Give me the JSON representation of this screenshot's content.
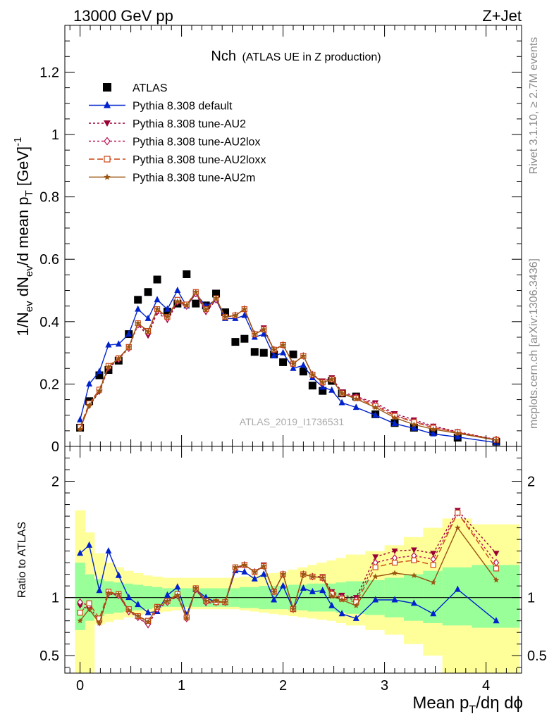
{
  "header": {
    "left": "13000 GeV pp",
    "right": "Z+Jet"
  },
  "side_labels": {
    "rivet": "Rivet 3.1.10, ≥ 2.7M events",
    "mcplots": "mcplots.cern.ch [arXiv:1306.3436]"
  },
  "plot": {
    "title_main": "Nch",
    "title_sub": "(ATLAS UE in Z production)",
    "watermark": "ATLAS_2019_I1736531",
    "ylabel_main": "1/N_ev dN_ev/d mean p_T [GeV]^-1",
    "ylabel_ratio": "Ratio to ATLAS",
    "xlabel": "Mean p_T/dη dϕ"
  },
  "colors": {
    "atlas": "#000000",
    "default": "#0022cc",
    "au2": "#990033",
    "au2lox": "#bb1155",
    "au2loxx": "#cc4411",
    "au2m": "#995511",
    "band_yellow": "#ffff99",
    "band_green": "#99ff99"
  },
  "chart_data": [
    {
      "type": "scatter",
      "name": "main",
      "xlim": [
        -0.15,
        4.35
      ],
      "ylim": [
        0,
        1.35
      ],
      "x_ticks": [
        0,
        1,
        2,
        3,
        4
      ],
      "y_ticks": [
        0,
        0.2,
        0.4,
        0.6,
        0.8,
        1,
        1.2
      ],
      "x_tick_labels": [
        "0",
        "1",
        "2",
        "3",
        "4"
      ],
      "y_tick_labels": [
        "0",
        "0.2",
        "0.4",
        "0.6",
        "0.8",
        "1",
        "1.2"
      ],
      "legend_position": "top-left",
      "x": [
        0.0,
        0.09,
        0.19,
        0.28,
        0.38,
        0.48,
        0.57,
        0.67,
        0.76,
        0.86,
        0.96,
        1.05,
        1.14,
        1.24,
        1.34,
        1.43,
        1.53,
        1.62,
        1.72,
        1.81,
        1.91,
        2.0,
        2.1,
        2.2,
        2.29,
        2.39,
        2.48,
        2.58,
        2.72,
        2.91,
        3.1,
        3.29,
        3.48,
        3.72,
        4.1
      ],
      "series": [
        {
          "name": "ATLAS",
          "key": "atlas",
          "marker": "square",
          "line": "none",
          "values": [
            0.06,
            0.145,
            0.228,
            0.245,
            0.275,
            0.36,
            0.47,
            0.495,
            0.535,
            0.432,
            0.458,
            0.552,
            0.458,
            0.452,
            0.49,
            0.43,
            0.335,
            0.345,
            0.303,
            0.3,
            0.295,
            0.27,
            0.295,
            0.24,
            0.195,
            0.178,
            0.21,
            0.17,
            0.16,
            0.103,
            0.075,
            0.06,
            0.047,
            0.028,
            0.015
          ]
        },
        {
          "name": "Pythia 8.308 default",
          "key": "default",
          "marker": "triangle",
          "line": "solid",
          "values": [
            0.085,
            0.2,
            0.24,
            0.325,
            0.328,
            0.36,
            0.44,
            0.41,
            0.47,
            0.44,
            0.5,
            0.45,
            0.49,
            0.45,
            0.47,
            0.41,
            0.41,
            0.42,
            0.35,
            0.36,
            0.29,
            0.3,
            0.25,
            0.26,
            0.22,
            0.19,
            0.18,
            0.14,
            0.125,
            0.1,
            0.073,
            0.058,
            0.04,
            0.03,
            0.012
          ]
        },
        {
          "name": "Pythia 8.308 tune-AU2",
          "key": "au2",
          "marker": "triangle-down",
          "line": "dotted",
          "values": [
            0.058,
            0.13,
            0.175,
            0.25,
            0.28,
            0.32,
            0.39,
            0.355,
            0.43,
            0.405,
            0.46,
            0.45,
            0.49,
            0.43,
            0.47,
            0.415,
            0.42,
            0.44,
            0.36,
            0.38,
            0.31,
            0.325,
            0.265,
            0.29,
            0.23,
            0.21,
            0.22,
            0.175,
            0.16,
            0.14,
            0.105,
            0.085,
            0.065,
            0.047,
            0.022
          ]
        },
        {
          "name": "Pythia 8.308 tune-AU2lox",
          "key": "au2lox",
          "marker": "diamond",
          "line": "dotted",
          "values": [
            0.06,
            0.135,
            0.18,
            0.255,
            0.28,
            0.315,
            0.39,
            0.365,
            0.435,
            0.41,
            0.465,
            0.45,
            0.49,
            0.435,
            0.47,
            0.415,
            0.42,
            0.44,
            0.36,
            0.375,
            0.31,
            0.325,
            0.265,
            0.29,
            0.23,
            0.205,
            0.215,
            0.17,
            0.158,
            0.135,
            0.1,
            0.08,
            0.062,
            0.045,
            0.022
          ]
        },
        {
          "name": "Pythia 8.308 tune-AU2loxx",
          "key": "au2loxx",
          "marker": "open-square",
          "line": "dashed",
          "values": [
            0.062,
            0.138,
            0.182,
            0.258,
            0.283,
            0.318,
            0.395,
            0.37,
            0.44,
            0.415,
            0.47,
            0.455,
            0.495,
            0.44,
            0.475,
            0.415,
            0.42,
            0.44,
            0.36,
            0.375,
            0.31,
            0.325,
            0.265,
            0.29,
            0.23,
            0.205,
            0.215,
            0.17,
            0.155,
            0.13,
            0.098,
            0.078,
            0.06,
            0.045,
            0.021
          ]
        },
        {
          "name": "Pythia 8.308 tune-AU2m",
          "key": "au2m",
          "marker": "star",
          "line": "solid",
          "values": [
            0.055,
            0.132,
            0.178,
            0.255,
            0.282,
            0.318,
            0.395,
            0.368,
            0.44,
            0.415,
            0.465,
            0.452,
            0.495,
            0.438,
            0.475,
            0.415,
            0.42,
            0.44,
            0.36,
            0.375,
            0.31,
            0.325,
            0.265,
            0.29,
            0.23,
            0.205,
            0.215,
            0.17,
            0.152,
            0.125,
            0.092,
            0.07,
            0.055,
            0.042,
            0.02
          ]
        }
      ]
    },
    {
      "type": "line",
      "name": "ratio",
      "xlim": [
        -0.15,
        4.35
      ],
      "ylim": [
        0.35,
        2.3
      ],
      "y_ticks": [
        0.5,
        1,
        2
      ],
      "y_tick_labels": [
        "0.5",
        "1",
        "2"
      ],
      "x": [
        0.0,
        0.09,
        0.19,
        0.28,
        0.38,
        0.48,
        0.57,
        0.67,
        0.76,
        0.86,
        0.96,
        1.05,
        1.14,
        1.24,
        1.34,
        1.43,
        1.53,
        1.62,
        1.72,
        1.81,
        1.91,
        2.0,
        2.1,
        2.2,
        2.29,
        2.39,
        2.48,
        2.58,
        2.72,
        2.91,
        3.1,
        3.29,
        3.48,
        3.72,
        4.1
      ],
      "bands": {
        "edges": [
          -0.05,
          0.05,
          0.14,
          0.24,
          0.33,
          0.43,
          0.52,
          0.62,
          0.71,
          0.81,
          0.9,
          1.0,
          1.1,
          1.19,
          1.29,
          1.38,
          1.48,
          1.57,
          1.67,
          1.76,
          1.86,
          1.95,
          2.05,
          2.14,
          2.24,
          2.33,
          2.43,
          2.52,
          2.62,
          2.81,
          3.0,
          3.19,
          3.38,
          3.57,
          3.86,
          4.33
        ],
        "yellow_low": [
          0.35,
          0.35,
          0.77,
          0.79,
          0.81,
          0.83,
          0.85,
          0.86,
          0.87,
          0.88,
          0.89,
          0.9,
          0.9,
          0.9,
          0.9,
          0.9,
          0.9,
          0.89,
          0.88,
          0.87,
          0.86,
          0.85,
          0.84,
          0.83,
          0.82,
          0.81,
          0.8,
          0.78,
          0.76,
          0.72,
          0.68,
          0.6,
          0.5,
          0.35,
          0.35
        ],
        "yellow_high": [
          1.75,
          1.56,
          1.38,
          1.3,
          1.26,
          1.23,
          1.21,
          1.19,
          1.18,
          1.17,
          1.17,
          1.17,
          1.17,
          1.17,
          1.17,
          1.17,
          1.17,
          1.18,
          1.19,
          1.2,
          1.21,
          1.22,
          1.24,
          1.26,
          1.28,
          1.3,
          1.32,
          1.34,
          1.37,
          1.4,
          1.45,
          1.52,
          1.6,
          1.68,
          1.63
        ],
        "green_low": [
          0.72,
          0.8,
          0.84,
          0.86,
          0.87,
          0.88,
          0.89,
          0.9,
          0.91,
          0.92,
          0.92,
          0.92,
          0.92,
          0.92,
          0.92,
          0.92,
          0.92,
          0.91,
          0.91,
          0.9,
          0.9,
          0.9,
          0.89,
          0.89,
          0.88,
          0.88,
          0.88,
          0.87,
          0.86,
          0.85,
          0.83,
          0.8,
          0.78,
          0.76,
          0.74
        ],
        "green_high": [
          1.3,
          1.2,
          1.16,
          1.14,
          1.13,
          1.12,
          1.11,
          1.1,
          1.09,
          1.08,
          1.08,
          1.08,
          1.08,
          1.08,
          1.08,
          1.08,
          1.08,
          1.09,
          1.09,
          1.1,
          1.1,
          1.1,
          1.11,
          1.11,
          1.12,
          1.12,
          1.12,
          1.13,
          1.14,
          1.15,
          1.17,
          1.2,
          1.23,
          1.26,
          1.28
        ]
      },
      "series": [
        {
          "name": "Pythia 8.308 default",
          "key": "default",
          "marker": "triangle",
          "line": "solid",
          "values": [
            1.38,
            1.45,
            1.06,
            1.4,
            1.19,
            1.0,
            0.94,
            0.87,
            0.88,
            1.02,
            1.09,
            0.85,
            1.07,
            1.0,
            0.96,
            0.96,
            1.23,
            1.22,
            1.16,
            1.2,
            0.98,
            1.1,
            0.9,
            1.08,
            1.05,
            1.06,
            0.93,
            0.86,
            0.82,
            0.98,
            0.98,
            0.95,
            0.86,
            1.07,
            0.8
          ]
        },
        {
          "name": "Pythia 8.308 tune-AU2",
          "key": "au2",
          "marker": "triangle-down",
          "line": "dotted",
          "values": [
            0.93,
            0.9,
            0.78,
            1.03,
            1.02,
            0.89,
            0.83,
            0.76,
            0.9,
            0.96,
            1.01,
            0.82,
            1.07,
            0.95,
            0.96,
            0.96,
            1.24,
            1.28,
            1.22,
            1.28,
            1.05,
            1.2,
            0.9,
            1.2,
            1.18,
            1.18,
            1.05,
            1.02,
            1.0,
            1.35,
            1.4,
            1.41,
            1.38,
            1.75,
            1.38
          ]
        },
        {
          "name": "Pythia 8.308 tune-AU2lox",
          "key": "au2lox",
          "marker": "diamond",
          "line": "dotted",
          "values": [
            0.96,
            0.93,
            0.79,
            1.04,
            1.02,
            0.88,
            0.83,
            0.77,
            0.9,
            0.96,
            1.02,
            0.82,
            1.07,
            0.96,
            0.96,
            0.96,
            1.25,
            1.28,
            1.22,
            1.27,
            1.05,
            1.2,
            0.9,
            1.2,
            1.18,
            1.17,
            1.04,
            1.0,
            0.98,
            1.3,
            1.34,
            1.36,
            1.33,
            1.73,
            1.3
          ]
        },
        {
          "name": "Pythia 8.308 tune-AU2loxx",
          "key": "au2loxx",
          "marker": "open-square",
          "line": "dashed",
          "values": [
            0.87,
            0.95,
            0.82,
            1.05,
            1.03,
            0.9,
            0.84,
            0.8,
            0.92,
            0.97,
            1.03,
            0.83,
            1.08,
            0.97,
            0.96,
            0.96,
            1.26,
            1.28,
            1.22,
            1.27,
            1.05,
            1.2,
            0.9,
            1.2,
            1.18,
            1.17,
            1.03,
            0.99,
            0.96,
            1.26,
            1.3,
            1.32,
            1.28,
            1.73,
            1.25
          ]
        },
        {
          "name": "Pythia 8.308 tune-AU2m",
          "key": "au2m",
          "marker": "star",
          "line": "solid",
          "values": [
            0.8,
            0.9,
            0.78,
            1.04,
            1.03,
            0.89,
            0.84,
            0.79,
            0.92,
            0.97,
            1.02,
            0.82,
            1.08,
            0.97,
            0.97,
            0.96,
            1.26,
            1.28,
            1.22,
            1.27,
            1.05,
            1.2,
            0.9,
            1.2,
            1.18,
            1.17,
            1.01,
            0.98,
            0.93,
            1.18,
            1.21,
            1.19,
            1.13,
            1.6,
            1.15
          ]
        }
      ]
    }
  ]
}
